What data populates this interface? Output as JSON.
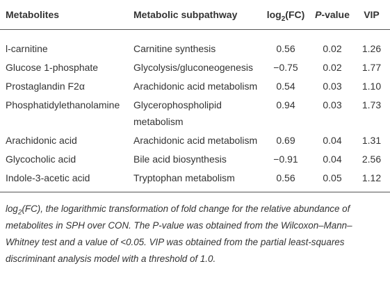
{
  "table": {
    "header": [
      "Metabolites",
      "Metabolic subpathway",
      [
        "log",
        "2",
        "(FC)"
      ],
      [
        "P",
        "-value"
      ],
      "VIP"
    ],
    "rows": [
      [
        "l-carnitine",
        "Carnitine synthesis",
        "0.56",
        "0.02",
        "1.26"
      ],
      [
        "Glucose 1-phosphate",
        "Glycolysis/gluconeogenesis",
        "−0.75",
        "0.02",
        "1.77"
      ],
      [
        "Prostaglandin F2α",
        "Arachidonic acid metabolism",
        "0.54",
        "0.03",
        "1.10"
      ],
      [
        "Phosphatidylethanolamine",
        "Glycerophospholipid metabolism",
        "0.94",
        "0.03",
        "1.73"
      ],
      [
        "Arachidonic acid",
        "Arachidonic acid metabolism",
        "0.69",
        "0.04",
        "1.31"
      ],
      [
        "Glycocholic acid",
        "Bile acid biosynthesis",
        "−0.91",
        "0.04",
        "2.56"
      ],
      [
        "Indole-3-acetic acid",
        "Tryptophan metabolism",
        "0.56",
        "0.05",
        "1.12"
      ]
    ],
    "footnote": [
      "log",
      "2",
      "(FC), the logarithmic transformation of fold change for the relative abundance of metabolites in SPH over CON. The P-value was obtained from the Wilcoxon–Mann–Whitney test and a value of <0.05. VIP was obtained from the partial least-squares discriminant analysis model with a threshold of 1.0."
    ]
  }
}
